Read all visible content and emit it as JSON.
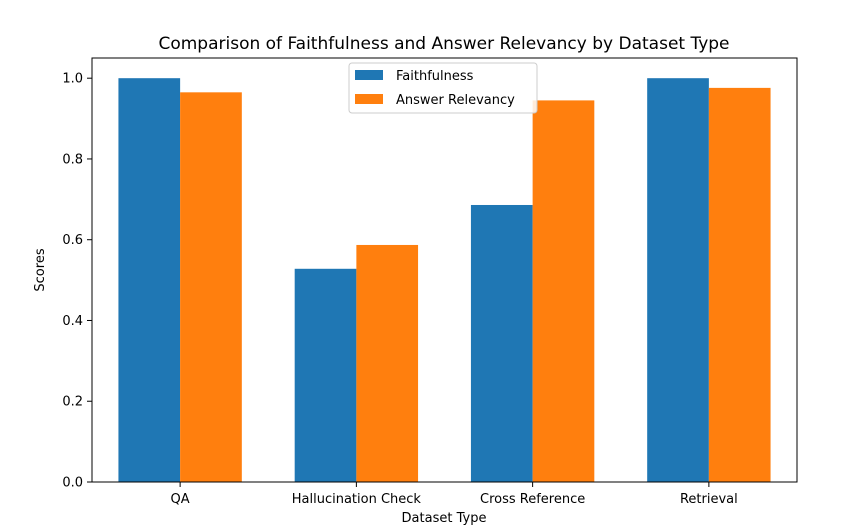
{
  "chart_data": {
    "type": "bar",
    "title": "Comparison of Faithfulness and Answer Relevancy by Dataset Type",
    "xlabel": "Dataset Type",
    "ylabel": "Scores",
    "categories": [
      "QA",
      "Hallucination Check",
      "Cross Reference",
      "Retrieval"
    ],
    "series": [
      {
        "name": "Faithfulness",
        "color": "#1f77b4",
        "values": [
          1.0,
          0.528,
          0.686,
          1.0
        ]
      },
      {
        "name": "Answer Relevancy",
        "color": "#ff7f0e",
        "values": [
          0.965,
          0.587,
          0.945,
          0.976
        ]
      }
    ],
    "ylim": [
      0,
      1.05
    ],
    "yticks": [
      "0.0",
      "0.2",
      "0.4",
      "0.6",
      "0.8",
      "1.0"
    ],
    "grid": false,
    "legend_position": "top-center"
  }
}
